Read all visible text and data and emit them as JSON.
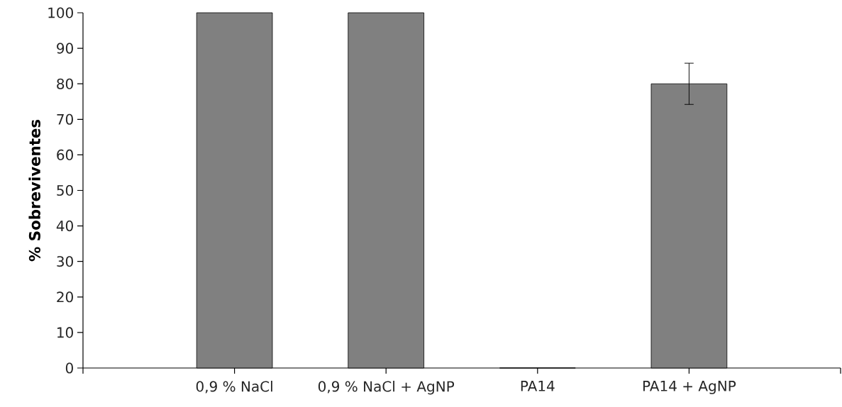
{
  "chart_data": {
    "type": "bar",
    "ylabel": "% Sobreviventes",
    "categories": [
      "0,9 % NaCl",
      "0,9 % NaCl + AgNP",
      "PA14",
      "PA14 + AgNP"
    ],
    "values": [
      100,
      100,
      0,
      80
    ],
    "errors": [
      null,
      null,
      null,
      5.8
    ],
    "color": "#808080",
    "ylim": [
      0,
      100
    ],
    "yticks": [
      0,
      10,
      20,
      30,
      40,
      50,
      60,
      70,
      80,
      90,
      100
    ]
  }
}
